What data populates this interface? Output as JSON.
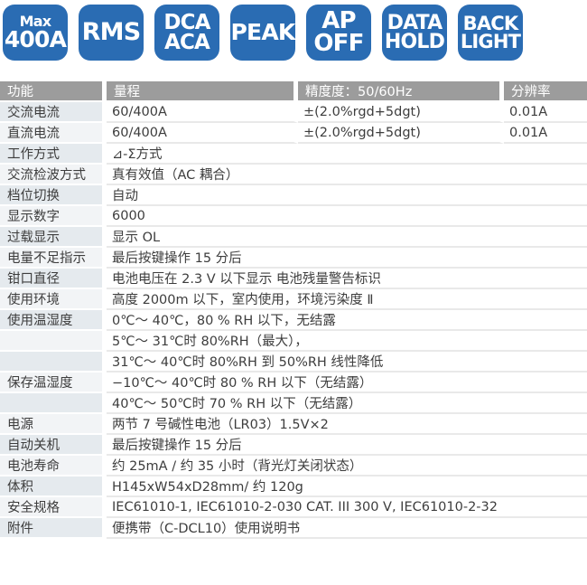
{
  "colors": {
    "badge_blue": "#2a6cb3",
    "header_gray": "#9c9c9c",
    "row_tint": "#e5eaee",
    "row_tint_alt": "#f2f4f6",
    "text": "#3d3d3d"
  },
  "badges": [
    {
      "lines": [
        "Max",
        "400A"
      ]
    },
    {
      "lines": [
        "RMS"
      ]
    },
    {
      "lines": [
        "DCA",
        "ACA"
      ]
    },
    {
      "lines": [
        "PEAK"
      ]
    },
    {
      "lines": [
        "AP",
        "OFF"
      ]
    },
    {
      "lines": [
        "DATA",
        "HOLD"
      ]
    },
    {
      "lines": [
        "BACK",
        "LIGHT"
      ]
    }
  ],
  "table": {
    "headers": [
      "功能",
      "量程",
      "精度度：50/60Hz",
      "分辨率"
    ],
    "rows": [
      {
        "label": "交流电流",
        "cells": [
          "60/400A",
          "±(2.0%rgd+5dgt)",
          "0.01A"
        ]
      },
      {
        "label": "直流电流",
        "cells": [
          "60/400A",
          "±(2.0%rgd+5dgt)",
          "0.01A"
        ]
      },
      {
        "label": "工作方式",
        "value": "⊿-Σ方式"
      },
      {
        "label": "交流检波方式",
        "value": "真有效值（AC 耦合）"
      },
      {
        "label": "档位切换",
        "value": "自动"
      },
      {
        "label": "显示数字",
        "value": "6000"
      },
      {
        "label": "过载显示",
        "value": "显示 OL"
      },
      {
        "label": "电量不足指示",
        "value": "最后按键操作 15 分后"
      },
      {
        "label": "钳口直径",
        "value": "电池电压在 2.3 V 以下显示 电池残量警告标识"
      },
      {
        "label": "使用环境",
        "value": "高度 2000m 以下，室内使用，环境污染度 Ⅱ"
      },
      {
        "label": "使用温湿度",
        "value": "0℃～ 40℃，80 % RH 以下，无结露"
      },
      {
        "label": "",
        "value": "5℃～ 31℃时 80%RH（最大），"
      },
      {
        "label": "",
        "value": "31℃～ 40℃时 80%RH 到 50%RH 线性降低"
      },
      {
        "label": "保存温湿度",
        "value": "−10℃～ 40℃时 80 % RH 以下（无结露）"
      },
      {
        "label": "",
        "value": "40℃～ 50℃时 70 % RH 以下（无结露）"
      },
      {
        "label": "电源",
        "value": "两节 7 号碱性电池（LR03）1.5V×2"
      },
      {
        "label": "自动关机",
        "value": "最后按键操作 15 分后"
      },
      {
        "label": "电池寿命",
        "value": "约 25mA / 约 35 小时（背光灯关闭状态）"
      },
      {
        "label": "体积",
        "value": "H145xW54xD28mm/ 约 120g"
      },
      {
        "label": "安全规格",
        "value": "IEC61010-1, IEC61010-2-030 CAT. III 300 V, IEC61010-2-32"
      },
      {
        "label": "附件",
        "value": "便携带（C-DCL10）使用说明书"
      }
    ]
  }
}
